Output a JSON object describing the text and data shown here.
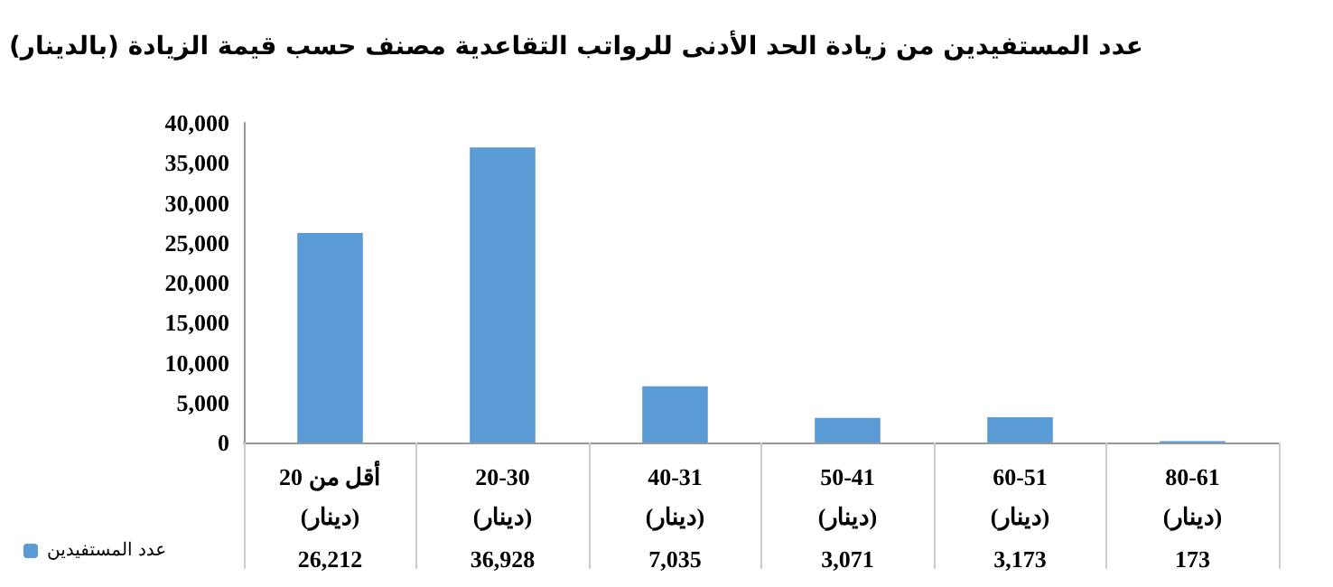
{
  "chart_data": {
    "type": "bar",
    "title": "عدد المستفيدين من زيادة الحد الأدنى للرواتب التقاعدية مصنف حسب قيمة الزيادة (بالدينار)",
    "categories": [
      "أقل من 20\n(دينار)",
      "20-30\n(دينار)",
      "40-31\n(دينار)",
      "50-41\n(دينار)",
      "60-51\n(دينار)",
      "80-61\n(دينار)"
    ],
    "series": [
      {
        "name": "عدد المستفيدين",
        "color": "#5b9bd5",
        "values": [
          26212,
          36928,
          7035,
          3071,
          3173,
          173
        ],
        "value_labels": [
          "26,212",
          "36,928",
          "7,035",
          "3,071",
          "3,173",
          "173"
        ]
      }
    ],
    "ylim": [
      0,
      40000
    ],
    "yticks": [
      {
        "value": 0,
        "label": "0"
      },
      {
        "value": 5000,
        "label": "5,000"
      },
      {
        "value": 10000,
        "label": "10,000"
      },
      {
        "value": 15000,
        "label": "15,000"
      },
      {
        "value": 20000,
        "label": "20,000"
      },
      {
        "value": 25000,
        "label": "25,000"
      },
      {
        "value": 30000,
        "label": "30,000"
      },
      {
        "value": 35000,
        "label": "35,000"
      },
      {
        "value": 40000,
        "label": "40,000"
      }
    ],
    "grid": false,
    "legend": "bottom left"
  }
}
